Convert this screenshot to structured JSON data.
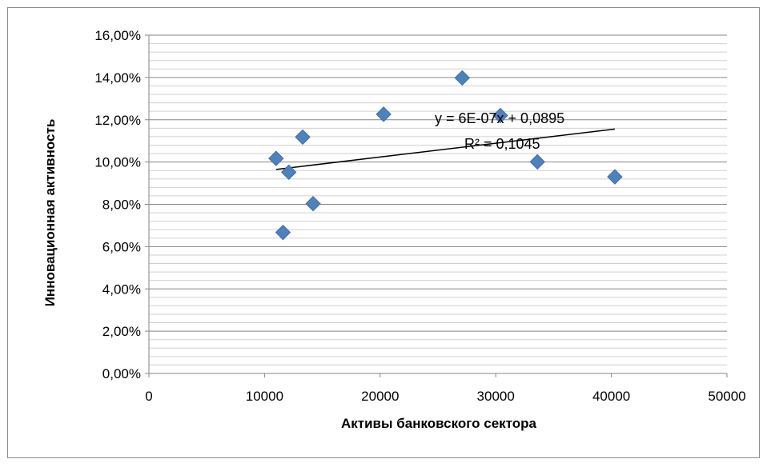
{
  "chart_data": {
    "type": "scatter",
    "title": "",
    "xlabel": "Активы банковского сектора",
    "ylabel": "Инновационная активность",
    "xlim": [
      0,
      50000
    ],
    "ylim": [
      0,
      0.16
    ],
    "x_ticks": [
      0,
      10000,
      20000,
      30000,
      40000,
      50000
    ],
    "x_tick_labels": [
      "0",
      "10000",
      "20000",
      "30000",
      "40000",
      "50000"
    ],
    "y_ticks": [
      0,
      0.02,
      0.04,
      0.06,
      0.08,
      0.1,
      0.12,
      0.14,
      0.16
    ],
    "y_tick_labels": [
      "0,00%",
      "2,00%",
      "4,00%",
      "6,00%",
      "8,00%",
      "10,00%",
      "12,00%",
      "14,00%",
      "16,00%"
    ],
    "grid": "horizontal major and minor",
    "marker": "diamond",
    "marker_color": "#4f81bd",
    "points": [
      {
        "x": 11000,
        "y": 0.1017
      },
      {
        "x": 11600,
        "y": 0.0667
      },
      {
        "x": 12100,
        "y": 0.0952
      },
      {
        "x": 13300,
        "y": 0.1118
      },
      {
        "x": 14200,
        "y": 0.0803
      },
      {
        "x": 20300,
        "y": 0.1226
      },
      {
        "x": 27100,
        "y": 0.1398
      },
      {
        "x": 30400,
        "y": 0.122
      },
      {
        "x": 33600,
        "y": 0.1001
      },
      {
        "x": 40300,
        "y": 0.093
      }
    ],
    "trendline": {
      "type": "linear",
      "x_range": [
        11000,
        40300
      ],
      "y_range": [
        0.0965,
        0.1156
      ],
      "equation": "y = 6E-07x + 0,0895",
      "r_squared": "R² = 0,1045"
    }
  }
}
